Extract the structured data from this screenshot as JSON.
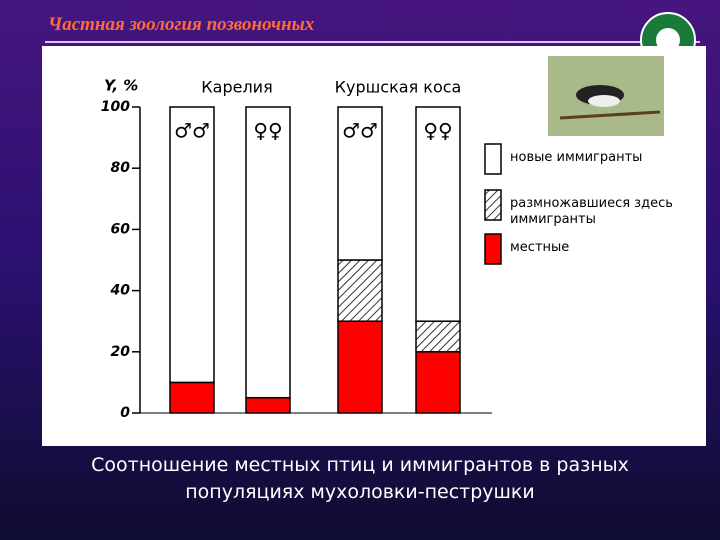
{
  "header": {
    "title": "Частная зоология позвоночных"
  },
  "chart_data": {
    "type": "bar",
    "stacked": true,
    "y_label": "Y, %",
    "groups": [
      "Карелия",
      "Куршская коса"
    ],
    "categories": [
      "♂♂",
      "♀♀",
      "♂♂",
      "♀♀"
    ],
    "series": [
      {
        "name": "местные",
        "color": "#ff0000",
        "values": [
          10,
          5,
          30,
          20
        ]
      },
      {
        "name": "размножавшиеся здесь иммигранты",
        "color": "#ffffff",
        "pattern": "hatch",
        "values": [
          0,
          0,
          20,
          10
        ]
      },
      {
        "name": "новые иммигранты",
        "color": "#ffffff",
        "values": [
          90,
          95,
          50,
          70
        ]
      }
    ],
    "ylim": [
      0,
      100
    ],
    "yticks": [
      0,
      20,
      40,
      60,
      80,
      100
    ]
  },
  "caption": "Соотношение местных птиц и иммигрантов в разных популяциях мухоловки-пеструшки"
}
